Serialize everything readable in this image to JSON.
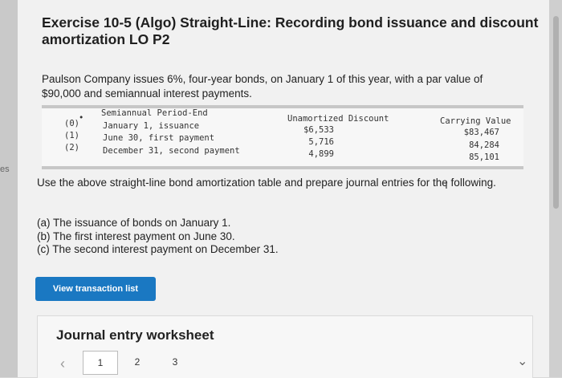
{
  "side_tag": "es",
  "title": "Exercise 10-5 (Algo) Straight-Line: Recording bond issuance and discount amortization LO P2",
  "intro": "Paulson Company issues 6%, four-year bonds, on January 1 of this year, with a par value of $90,000 and semiannual interest payments.",
  "table": {
    "headers": {
      "marker": "•",
      "period": "Semiannual Period-End",
      "discount": "Unamortized Discount",
      "carrying": "Carrying Value"
    },
    "rows": [
      {
        "idx": "(0)",
        "period": "January 1, issuance",
        "discount": "$6,533",
        "carrying": "$83,467"
      },
      {
        "idx": "(1)",
        "period": "June 30, first payment",
        "discount": "5,716",
        "carrying": "84,284"
      },
      {
        "idx": "(2)",
        "period": "December 31, second payment",
        "discount": "4,899",
        "carrying": "85,101"
      }
    ]
  },
  "description": "Use the above straight-line bond amortization table and prepare journal entries for the following.",
  "tasks": [
    "(a) The issuance of bonds on January 1.",
    "(b) The first interest payment on June 30.",
    "(c) The second interest payment on December 31."
  ],
  "view_button_label": "View transaction list",
  "worksheet": {
    "title": "Journal entry worksheet",
    "prev_icon": "‹",
    "pages": [
      "1",
      "2",
      "3"
    ],
    "active_page": "1"
  }
}
